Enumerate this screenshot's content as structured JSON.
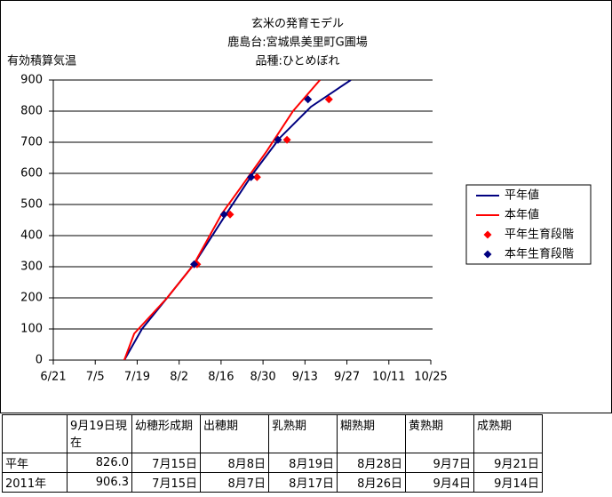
{
  "chart_data": {
    "type": "line",
    "title": [
      "玄米の発育モデル",
      "鹿島台:宮城県美里町G圃場",
      "品種:ひとめぼれ"
    ],
    "ylabel": "有効積算気温",
    "xlim": [
      172,
      298
    ],
    "xticks": [
      {
        "value": 172,
        "label": "6/21"
      },
      {
        "value": 186,
        "label": "7/5"
      },
      {
        "value": 200,
        "label": "7/19"
      },
      {
        "value": 214,
        "label": "8/2"
      },
      {
        "value": 228,
        "label": "8/16"
      },
      {
        "value": 242,
        "label": "8/30"
      },
      {
        "value": 256,
        "label": "9/13"
      },
      {
        "value": 270,
        "label": "9/27"
      },
      {
        "value": 284,
        "label": "10/11"
      },
      {
        "value": 298,
        "label": "10/25"
      }
    ],
    "ylim": [
      0,
      900
    ],
    "yticks": [
      0,
      100,
      200,
      300,
      400,
      500,
      600,
      700,
      800,
      900
    ],
    "grid": true,
    "legend": "right",
    "series": [
      {
        "name": "平年値",
        "color": "#000080",
        "style": "line",
        "x": [
          195.7,
          201.6,
          210,
          218.8,
          229.8,
          238.7,
          247.6,
          258,
          271.3
        ],
        "values": [
          0,
          100,
          200,
          306,
          471,
          600,
          714,
          814,
          900
        ]
      },
      {
        "name": "本年値",
        "color": "#ff0000",
        "style": "line",
        "x": [
          195.7,
          199,
          210,
          218.8,
          228.3,
          233.7,
          243.2,
          252,
          261
        ],
        "values": [
          0,
          85,
          200,
          306,
          471,
          543,
          671,
          800,
          900
        ]
      },
      {
        "name": "平年生育段階",
        "color": "#ff0000",
        "style": "marker",
        "x": [
          220,
          231,
          240,
          250,
          264
        ],
        "values": [
          308,
          468,
          588,
          708,
          838
        ]
      },
      {
        "name": "本年生育段階",
        "color": "#000080",
        "style": "marker",
        "x": [
          219,
          229,
          238,
          247,
          257
        ],
        "values": [
          308,
          468,
          588,
          708,
          838
        ]
      }
    ]
  },
  "table": {
    "header": [
      "",
      "9月19日現在",
      "幼穂形成期",
      "出穂期",
      "乳熟期",
      "糊熟期",
      "黄熟期",
      "成熟期"
    ],
    "rows": [
      [
        "平年",
        "826.0",
        "7月15日",
        "8月8日",
        "8月19日",
        "8月28日",
        "9月7日",
        "9月21日"
      ],
      [
        "2011年",
        "906.3",
        "7月15日",
        "8月7日",
        "8月17日",
        "8月26日",
        "9月4日",
        "9月14日"
      ]
    ]
  }
}
